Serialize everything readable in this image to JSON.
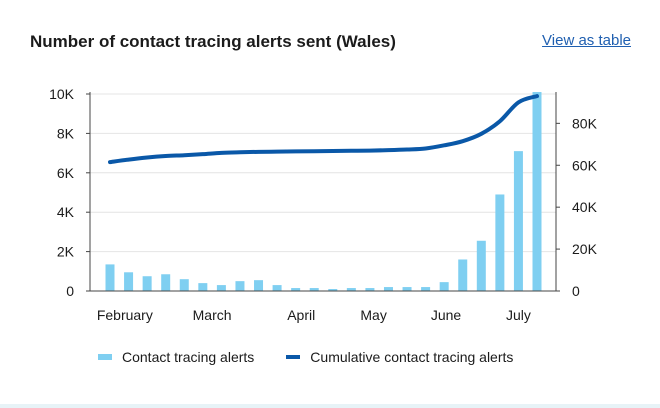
{
  "header": {
    "title": "Number of contact tracing alerts sent (Wales)",
    "view_link": "View as table"
  },
  "legend": {
    "items": [
      {
        "label": "Contact tracing alerts",
        "color": "#7fcff1"
      },
      {
        "label": "Cumulative contact tracing alerts",
        "color": "#0a58a8"
      }
    ]
  },
  "chart_data": {
    "type": "bar",
    "title": "Number of contact tracing alerts sent (Wales)",
    "x_tick_labels": [
      "February",
      "March",
      "April",
      "May",
      "June",
      "July"
    ],
    "series": [
      {
        "name": "Contact tracing alerts",
        "type": "bar",
        "axis": "left",
        "color": "#7fcff1",
        "values": [
          1350,
          950,
          750,
          850,
          600,
          400,
          300,
          500,
          550,
          300,
          150,
          150,
          100,
          150,
          150,
          200,
          200,
          200,
          450,
          1600,
          2550,
          4900,
          7100,
          10100
        ]
      },
      {
        "name": "Cumulative contact tracing alerts",
        "type": "line",
        "axis": "right",
        "color": "#0a58a8",
        "values": [
          61500,
          62700,
          63700,
          64400,
          64800,
          65300,
          65900,
          66200,
          66400,
          66500,
          66600,
          66700,
          66800,
          66900,
          67000,
          67200,
          67500,
          68000,
          69500,
          71500,
          75000,
          81000,
          90000,
          93000
        ]
      }
    ],
    "y_left": {
      "ticks": [
        "0",
        "2K",
        "4K",
        "6K",
        "8K",
        "10K"
      ],
      "ylim": [
        0,
        10000
      ]
    },
    "y_right": {
      "ticks": [
        "0",
        "20K",
        "40K",
        "60K",
        "80K"
      ],
      "ylim": [
        0,
        94000
      ]
    },
    "grid": true
  }
}
